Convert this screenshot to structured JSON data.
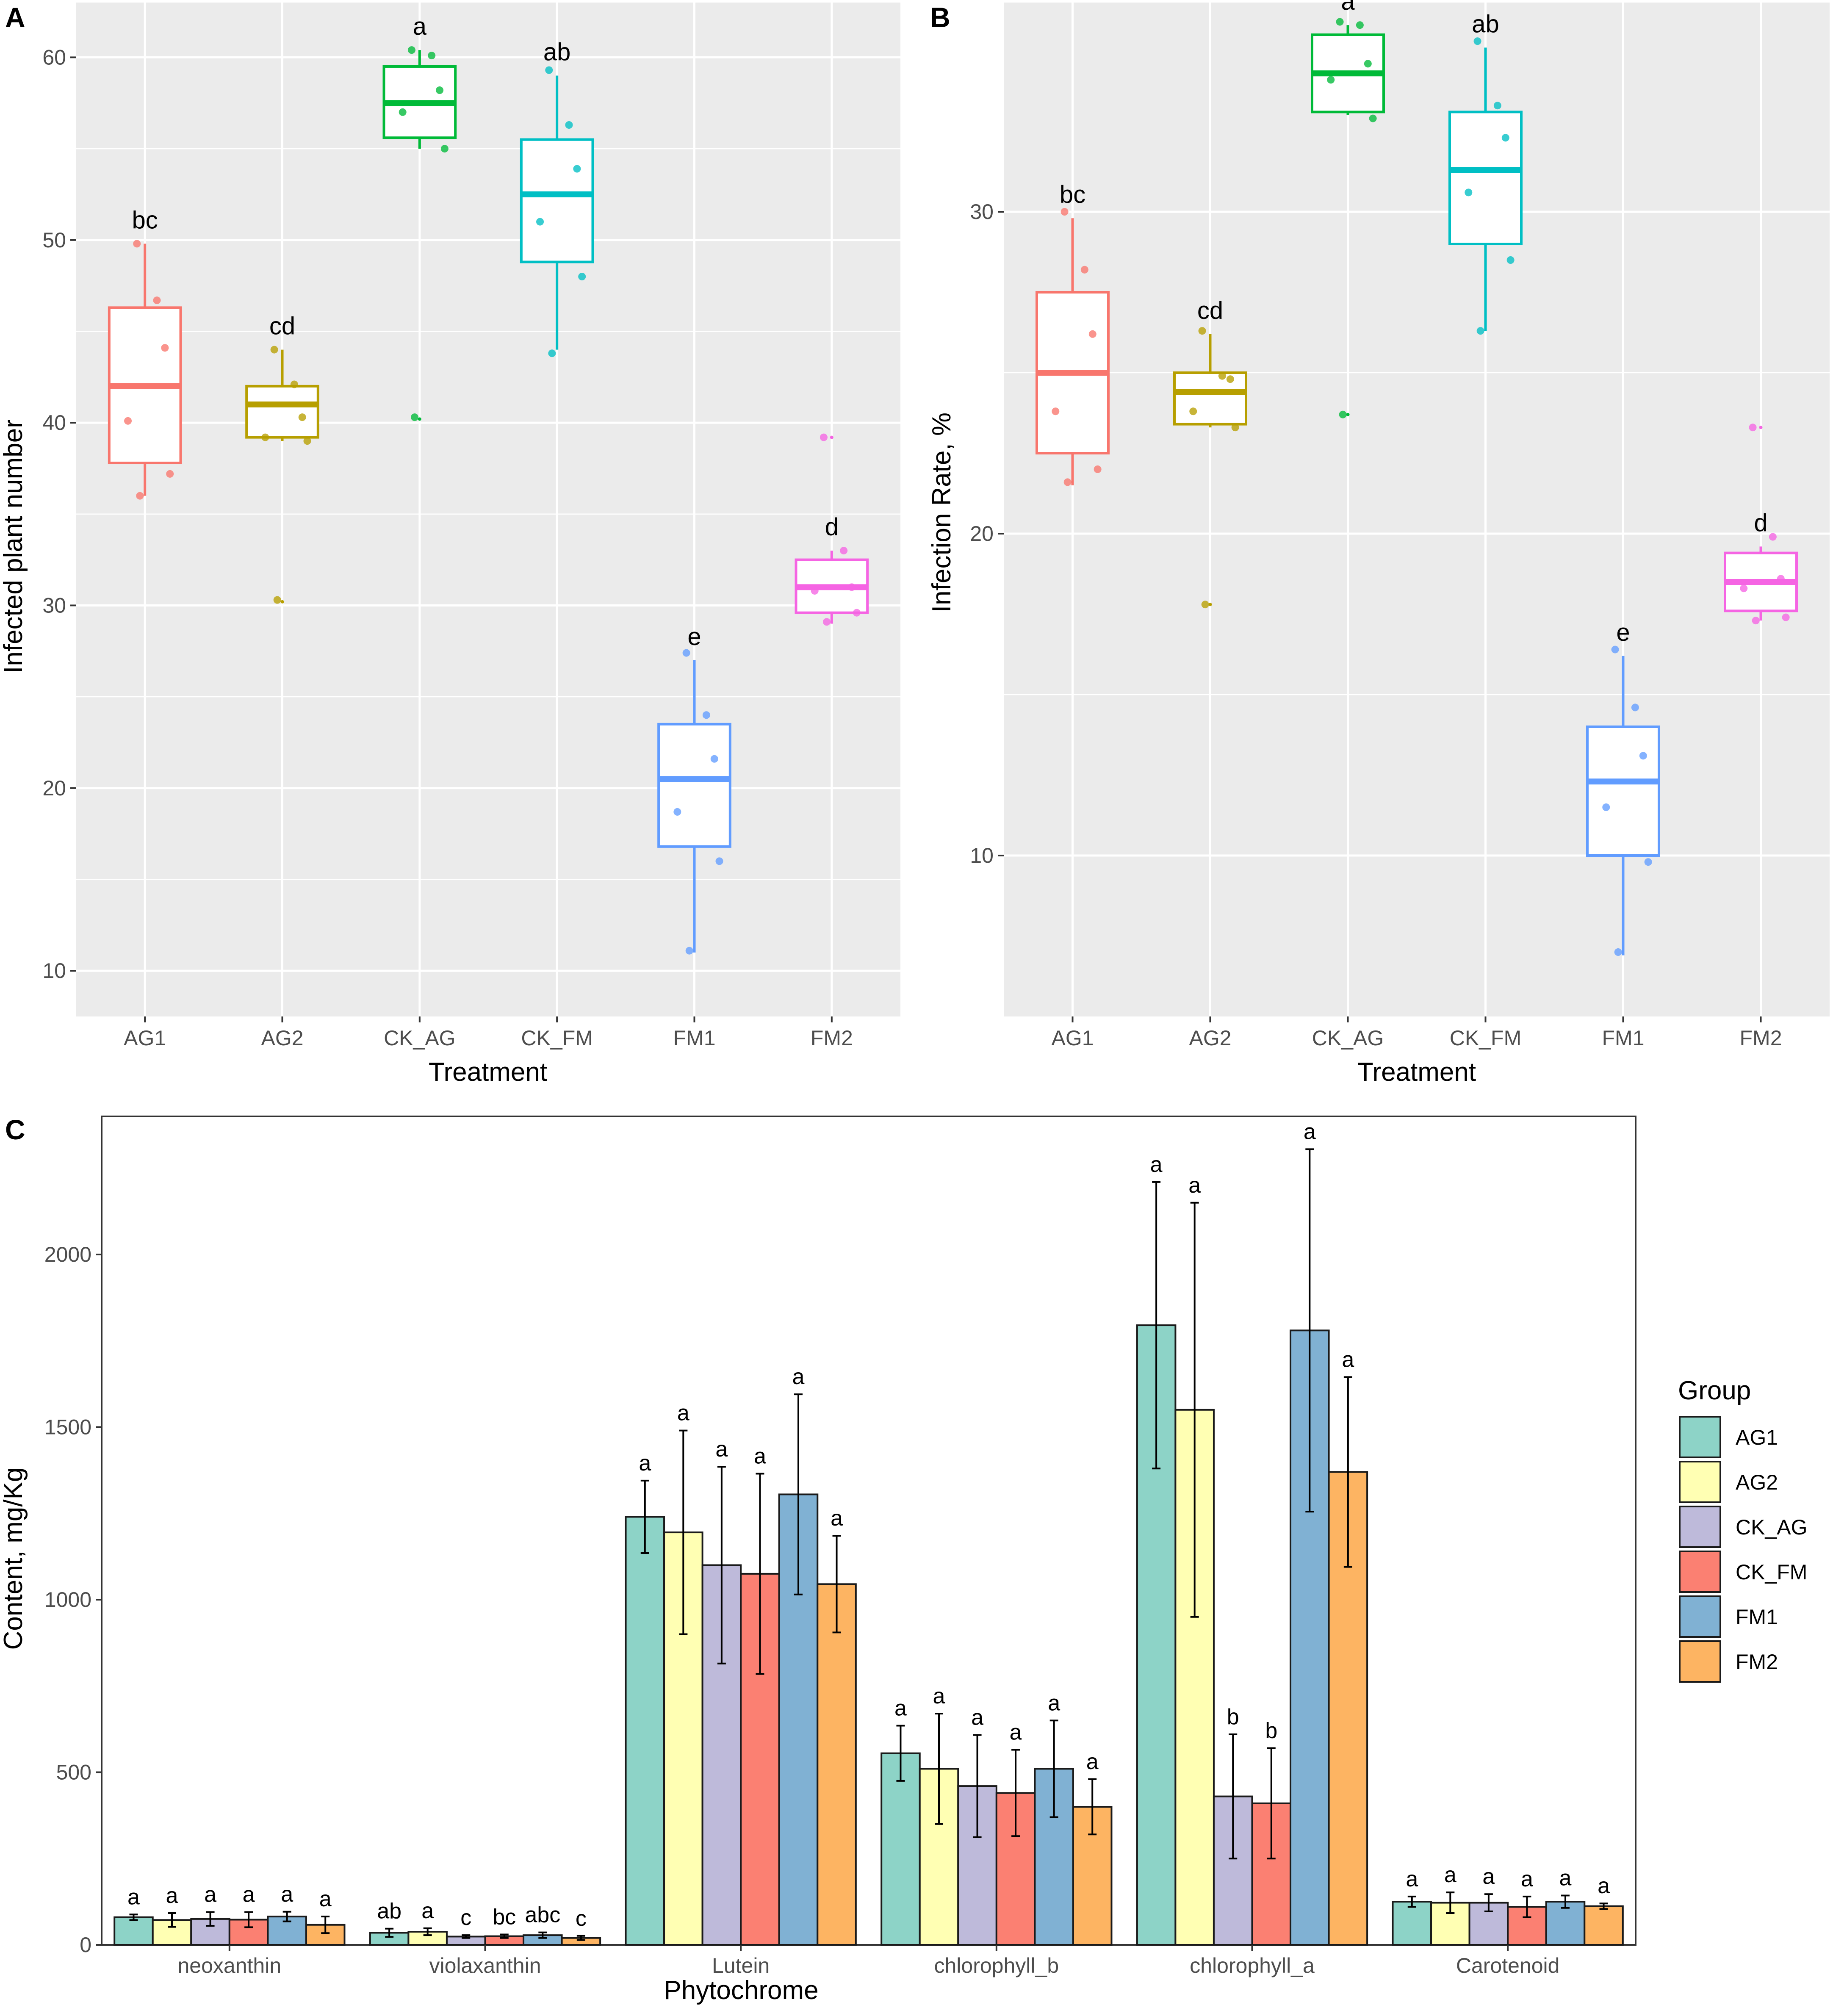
{
  "colors": {
    "panel_bg": "#ebebeb",
    "grid": "#ffffff",
    "axis_text": "#4d4d4d",
    "groups_ab": {
      "AG1": "#f8766d",
      "AG2": "#b79f00",
      "CK_AG": "#00ba38",
      "CK_FM": "#00bfc4",
      "FM1": "#619cff",
      "FM2": "#f564e3"
    },
    "groups_c": {
      "AG1": "#8dd3c7",
      "AG2": "#ffffb3",
      "CK_AG": "#bebada",
      "CK_FM": "#fb8072",
      "FM1": "#80b1d3",
      "FM2": "#fdb462"
    }
  },
  "chart_data": [
    {
      "panel": "A",
      "type": "box",
      "xlabel": "Treatment",
      "ylabel": "Infected plant number",
      "ylim": [
        7.5,
        63
      ],
      "yticks": [
        10,
        20,
        30,
        40,
        50,
        60
      ],
      "categories": [
        "AG1",
        "AG2",
        "CK_AG",
        "CK_FM",
        "FM1",
        "FM2"
      ],
      "boxes": [
        {
          "name": "AG1",
          "min": 36,
          "q1": 37.8,
          "median": 42,
          "q3": 46.3,
          "max": 49.8,
          "outliers": [],
          "letter": "bc",
          "points": [
            49.8,
            46.7,
            44.1,
            40.1,
            37.2,
            36.0
          ]
        },
        {
          "name": "AG2",
          "min": 39,
          "q1": 39.2,
          "median": 41,
          "q3": 42,
          "max": 44,
          "outliers": [
            30.2
          ],
          "letter": "cd",
          "points": [
            44.0,
            42.1,
            40.3,
            39.2,
            39.0,
            30.3
          ]
        },
        {
          "name": "CK_AG",
          "min": 55,
          "q1": 55.6,
          "median": 57.5,
          "q3": 59.5,
          "max": 60.4,
          "outliers": [
            40.2
          ],
          "letter": "a",
          "points": [
            60.4,
            60.1,
            58.2,
            57.0,
            55.0,
            40.3
          ]
        },
        {
          "name": "CK_FM",
          "min": 44,
          "q1": 48.8,
          "median": 52.5,
          "q3": 55.5,
          "max": 59,
          "outliers": [],
          "letter": "ab",
          "points": [
            59.3,
            56.3,
            53.9,
            51.0,
            48.0,
            43.8
          ]
        },
        {
          "name": "FM1",
          "min": 11,
          "q1": 16.8,
          "median": 20.5,
          "q3": 23.5,
          "max": 27,
          "outliers": [],
          "letter": "e",
          "points": [
            27.4,
            24.0,
            21.6,
            18.7,
            16.0,
            11.1
          ]
        },
        {
          "name": "FM2",
          "min": 29,
          "q1": 29.6,
          "median": 31,
          "q3": 32.5,
          "max": 33,
          "outliers": [
            39.2
          ],
          "letter": "d",
          "points": [
            39.2,
            33.0,
            31.0,
            30.8,
            29.6,
            29.1
          ]
        }
      ]
    },
    {
      "panel": "B",
      "type": "box",
      "xlabel": "Treatment",
      "ylabel": "Infection Rate, %",
      "ylim": [
        5,
        36.5
      ],
      "yticks": [
        10,
        20,
        30
      ],
      "categories": [
        "AG1",
        "AG2",
        "CK_AG",
        "CK_FM",
        "FM1",
        "FM2"
      ],
      "boxes": [
        {
          "name": "AG1",
          "min": 21.5,
          "q1": 22.5,
          "median": 25,
          "q3": 27.5,
          "max": 29.8,
          "outliers": [],
          "letter": "bc",
          "points": [
            30.0,
            28.2,
            26.2,
            23.8,
            22.0,
            21.6
          ]
        },
        {
          "name": "AG2",
          "min": 23.3,
          "q1": 23.4,
          "median": 24.4,
          "q3": 25,
          "max": 26.2,
          "outliers": [
            17.8
          ],
          "letter": "cd",
          "points": [
            26.3,
            24.9,
            24.8,
            23.8,
            23.3,
            17.8
          ]
        },
        {
          "name": "CK_AG",
          "min": 33,
          "q1": 33.1,
          "median": 34.3,
          "q3": 35.5,
          "max": 35.8,
          "outliers": [
            23.7
          ],
          "letter": "a",
          "points": [
            35.9,
            35.8,
            34.6,
            34.1,
            32.9,
            23.7
          ]
        },
        {
          "name": "CK_FM",
          "min": 26.3,
          "q1": 29,
          "median": 31.3,
          "q3": 33.1,
          "max": 35.1,
          "outliers": [],
          "letter": "ab",
          "points": [
            35.3,
            33.3,
            32.3,
            30.6,
            28.5,
            26.3
          ]
        },
        {
          "name": "FM1",
          "min": 6.9,
          "q1": 10,
          "median": 12.3,
          "q3": 14,
          "max": 16.2,
          "outliers": [],
          "letter": "e",
          "points": [
            16.4,
            14.6,
            13.1,
            11.5,
            9.8,
            7.0
          ]
        },
        {
          "name": "FM2",
          "min": 17.3,
          "q1": 17.6,
          "median": 18.5,
          "q3": 19.4,
          "max": 19.6,
          "outliers": [
            23.3
          ],
          "letter": "d",
          "points": [
            23.3,
            19.9,
            18.6,
            18.3,
            17.4,
            17.3
          ]
        }
      ]
    },
    {
      "panel": "C",
      "type": "bar",
      "xlabel": "Phytochrome",
      "ylabel": "Content, mg/Kg",
      "ylim": [
        0,
        2400
      ],
      "yticks": [
        0,
        500,
        1000,
        1500,
        2000
      ],
      "legend_title": "Group",
      "legend_position": "right",
      "categories": [
        "neoxanthin",
        "violaxanthin",
        "Lutein",
        "chlorophyll_b",
        "chlorophyll_a",
        "Carotenoid"
      ],
      "series": [
        {
          "name": "AG1",
          "values": [
            80,
            35,
            1240,
            555,
            1795,
            125
          ],
          "errors": [
            8,
            12,
            105,
            80,
            415,
            15
          ],
          "letters": [
            "a",
            "ab",
            "a",
            "a",
            "a",
            "a"
          ]
        },
        {
          "name": "AG2",
          "values": [
            72,
            38,
            1195,
            510,
            1550,
            122
          ],
          "errors": [
            20,
            10,
            295,
            160,
            600,
            30
          ],
          "letters": [
            "a",
            "a",
            "a",
            "a",
            "a",
            "a"
          ]
        },
        {
          "name": "CK_AG",
          "values": [
            75,
            24,
            1100,
            460,
            430,
            122
          ],
          "errors": [
            20,
            4,
            285,
            148,
            180,
            25
          ],
          "letters": [
            "a",
            "c",
            "a",
            "a",
            "b",
            "a"
          ]
        },
        {
          "name": "CK_FM",
          "values": [
            73,
            25,
            1075,
            440,
            410,
            110
          ],
          "errors": [
            22,
            5,
            290,
            125,
            160,
            30
          ],
          "letters": [
            "a",
            "bc",
            "a",
            "a",
            "b",
            "a"
          ]
        },
        {
          "name": "FM1",
          "values": [
            82,
            28,
            1305,
            510,
            1780,
            125
          ],
          "errors": [
            14,
            8,
            290,
            140,
            525,
            18
          ],
          "letters": [
            "a",
            "abc",
            "a",
            "a",
            "a",
            "a"
          ]
        },
        {
          "name": "FM2",
          "values": [
            58,
            20,
            1045,
            400,
            1370,
            112
          ],
          "errors": [
            24,
            6,
            140,
            80,
            275,
            8
          ],
          "letters": [
            "a",
            "c",
            "a",
            "a",
            "a",
            "a"
          ]
        }
      ]
    }
  ]
}
